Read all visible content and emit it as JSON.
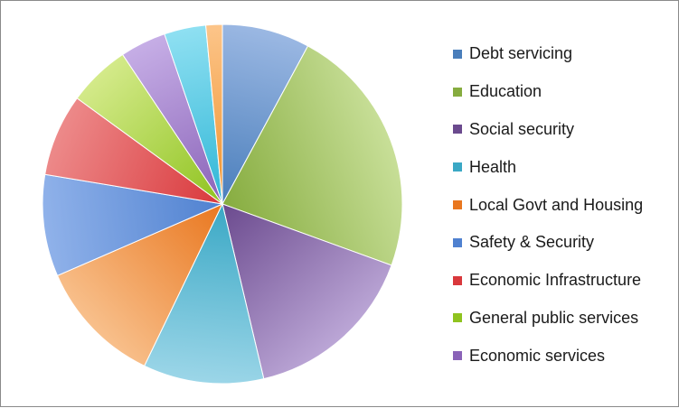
{
  "chart_data": {
    "type": "pie",
    "title": "",
    "legend_position": "right",
    "slices": [
      {
        "label": "Debt servicing",
        "value": 8.0,
        "color": "#4a7ebb",
        "light": "#9bb8e3"
      },
      {
        "label": "Education",
        "value": 23.0,
        "color": "#86ac3f",
        "light": "#c8df98"
      },
      {
        "label": "Social security",
        "value": 16.0,
        "color": "#6b4a8e",
        "light": "#bba6d6"
      },
      {
        "label": "Health",
        "value": 11.0,
        "color": "#3aa8c5",
        "light": "#9cd6e8"
      },
      {
        "label": "Local Govt and Housing",
        "value": 11.5,
        "color": "#e9771f",
        "light": "#f8c08c"
      },
      {
        "label": "Safety & Security",
        "value": 9.3,
        "color": "#4f81d0",
        "light": "#90b2ea"
      },
      {
        "label": "Economic Infrastructure",
        "value": 7.5,
        "color": "#d9383c",
        "light": "#ed8a8a"
      },
      {
        "label": "General public services",
        "value": 5.7,
        "color": "#8fc31f",
        "light": "#d4ea8a"
      },
      {
        "label": "Economic services",
        "value": 4.2,
        "color": "#8a63b8",
        "light": "#c6aee6"
      },
      {
        "label": "",
        "value": 3.8,
        "color": "#2fb6d6",
        "light": "#8fe0f2"
      },
      {
        "label": "",
        "value": 1.5,
        "color": "#f0922c",
        "light": "#fcc58a"
      }
    ]
  }
}
